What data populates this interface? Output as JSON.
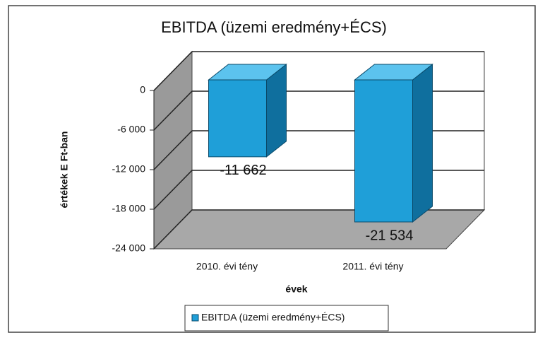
{
  "chart_data": {
    "type": "bar3d",
    "title": "EBITDA (üzemi eredmény+ÉCS)",
    "categories": [
      "2010. évi tény",
      "2011. évi tény"
    ],
    "series": [
      {
        "name": "EBITDA (üzemi eredmény+ÉCS)",
        "color": "#1f9fd8",
        "values": [
          -11662,
          -21534
        ],
        "value_labels": [
          "-11 662",
          "-21 534"
        ]
      }
    ],
    "ylim": [
      -24000,
      0
    ],
    "yticks": [
      0,
      {
        "value": -6000,
        "label": "-6 000"
      },
      {
        "value": -12000,
        "label": "-12 000"
      },
      {
        "value": -18000,
        "label": "-18 000"
      },
      {
        "value": -24000,
        "label": "-24 000"
      }
    ],
    "y_label": "értékek E Ft-ban",
    "x_label": "évek",
    "grid": true,
    "legend": "bottom"
  }
}
